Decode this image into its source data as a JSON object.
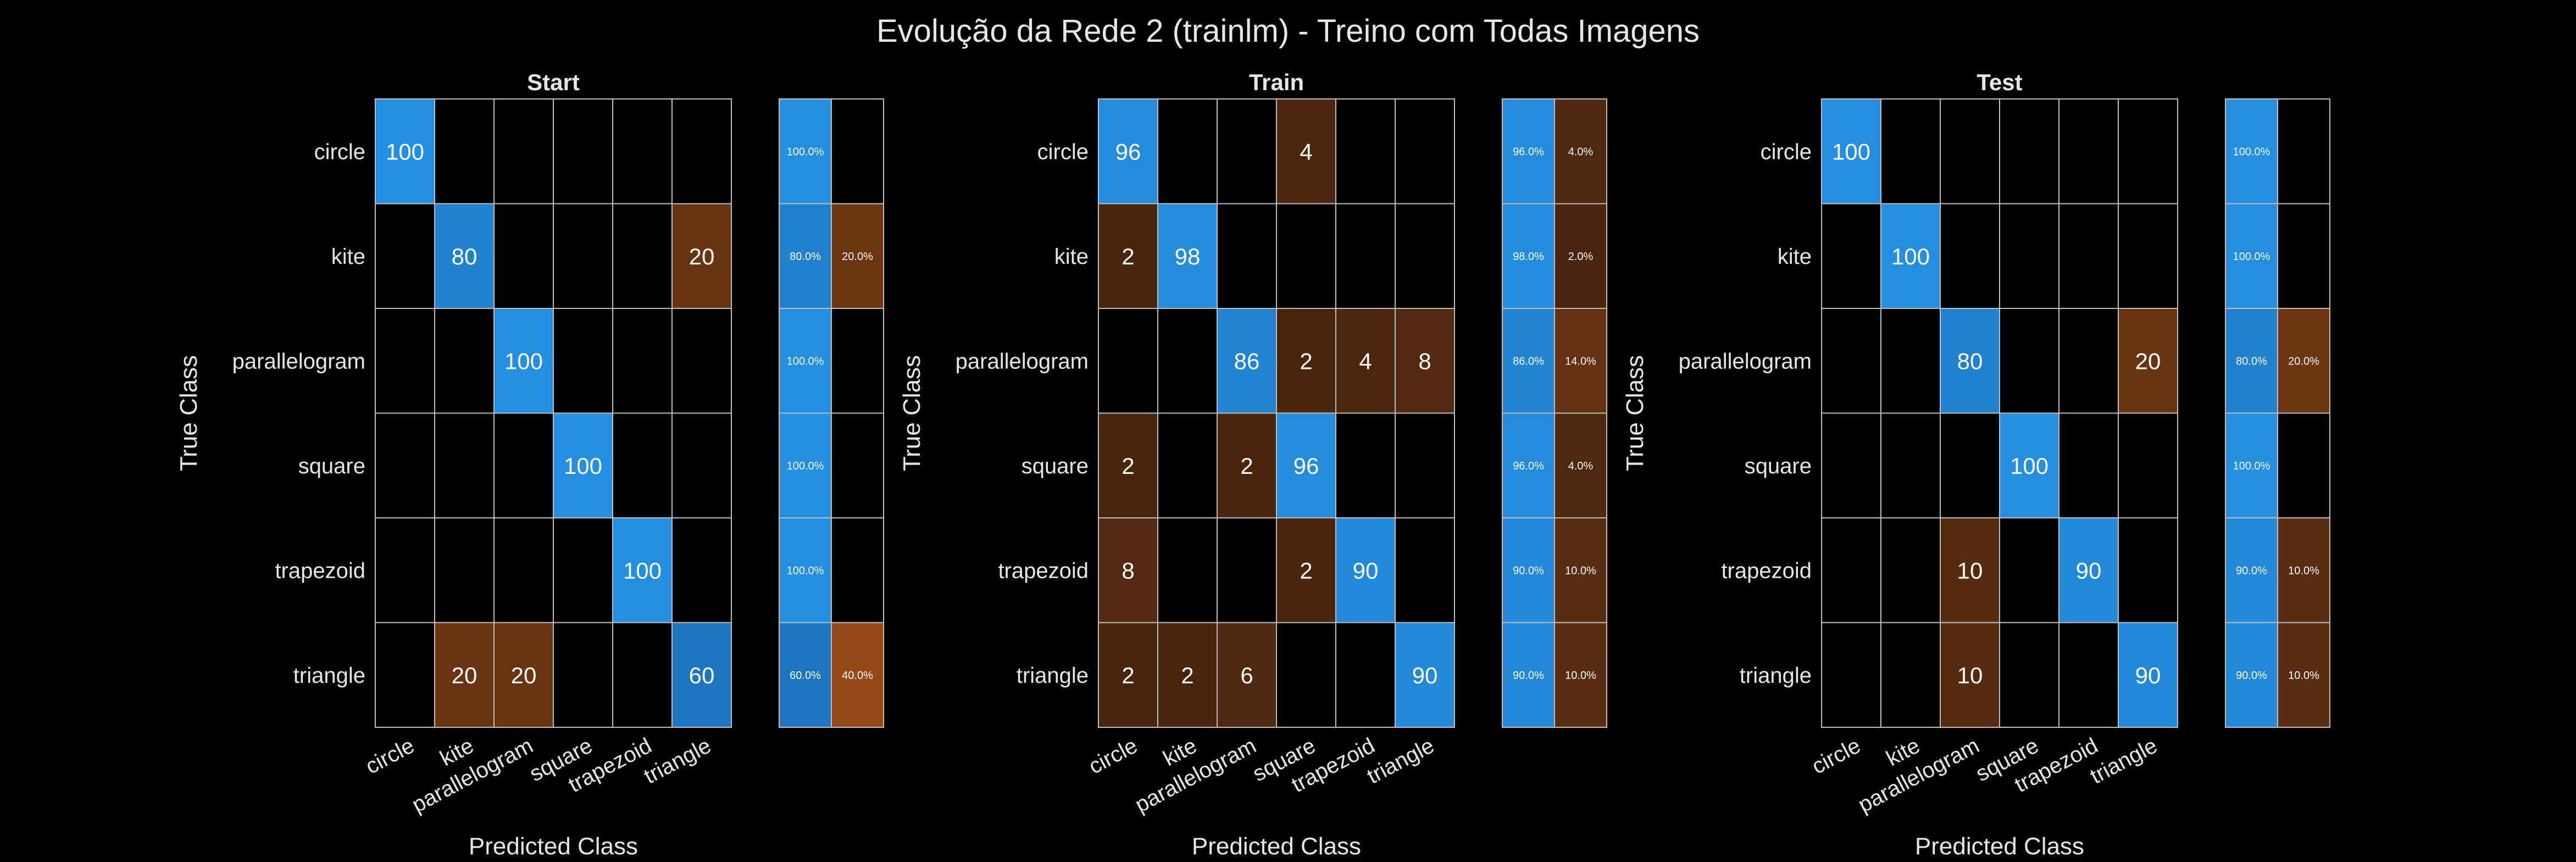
{
  "figure": {
    "title": "Evolução da Rede 2 (trainlm) - Treino com Todas Imagens",
    "background": "#000000",
    "grid_color": "#bdbdbd",
    "text_color": "#e6e6e6"
  },
  "chart_data": [
    {
      "type": "heatmap",
      "title": "Start",
      "xlabel": "Predicted Class",
      "ylabel": "True Class",
      "classes": [
        "circle",
        "kite",
        "parallelogram",
        "square",
        "trapezoid",
        "triangle"
      ],
      "matrix": [
        [
          100,
          0,
          0,
          0,
          0,
          0
        ],
        [
          0,
          80,
          0,
          0,
          0,
          20
        ],
        [
          0,
          0,
          100,
          0,
          0,
          0
        ],
        [
          0,
          0,
          0,
          100,
          0,
          0
        ],
        [
          0,
          0,
          0,
          0,
          100,
          0
        ],
        [
          0,
          20,
          20,
          0,
          0,
          60
        ]
      ],
      "row_summary": {
        "correct": [
          "100.0%",
          "80.0%",
          "100.0%",
          "100.0%",
          "100.0%",
          "60.0%"
        ],
        "incorrect": [
          "",
          "20.0%",
          "",
          "",
          "",
          "40.0%"
        ]
      }
    },
    {
      "type": "heatmap",
      "title": "Train",
      "xlabel": "Predicted Class",
      "ylabel": "True Class",
      "classes": [
        "circle",
        "kite",
        "parallelogram",
        "square",
        "trapezoid",
        "triangle"
      ],
      "matrix": [
        [
          96,
          0,
          0,
          4,
          0,
          0
        ],
        [
          2,
          98,
          0,
          0,
          0,
          0
        ],
        [
          0,
          0,
          86,
          2,
          4,
          8
        ],
        [
          2,
          0,
          2,
          96,
          0,
          0
        ],
        [
          8,
          0,
          0,
          2,
          90,
          0
        ],
        [
          2,
          2,
          6,
          0,
          0,
          90
        ]
      ],
      "row_summary": {
        "correct": [
          "96.0%",
          "98.0%",
          "86.0%",
          "96.0%",
          "90.0%",
          "90.0%"
        ],
        "incorrect": [
          "4.0%",
          "2.0%",
          "14.0%",
          "4.0%",
          "10.0%",
          "10.0%"
        ]
      }
    },
    {
      "type": "heatmap",
      "title": "Test",
      "xlabel": "Predicted Class",
      "ylabel": "True Class",
      "classes": [
        "circle",
        "kite",
        "parallelogram",
        "square",
        "trapezoid",
        "triangle"
      ],
      "matrix": [
        [
          100,
          0,
          0,
          0,
          0,
          0
        ],
        [
          0,
          100,
          0,
          0,
          0,
          0
        ],
        [
          0,
          0,
          80,
          0,
          0,
          20
        ],
        [
          0,
          0,
          0,
          100,
          0,
          0
        ],
        [
          0,
          0,
          10,
          0,
          90,
          0
        ],
        [
          0,
          0,
          10,
          0,
          0,
          90
        ]
      ],
      "row_summary": {
        "correct": [
          "100.0%",
          "100.0%",
          "80.0%",
          "100.0%",
          "90.0%",
          "90.0%"
        ],
        "incorrect": [
          "",
          "",
          "20.0%",
          "",
          "10.0%",
          "10.0%"
        ]
      }
    }
  ]
}
